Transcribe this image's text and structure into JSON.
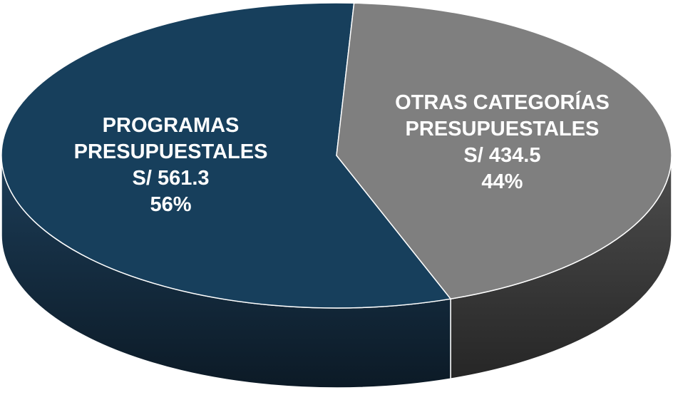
{
  "chart_data": {
    "type": "pie",
    "categories": [
      "PROGRAMAS PRESUPUESTALES",
      "OTRAS CATEGORÍAS PRESUPUESTALES"
    ],
    "values": [
      561.3,
      434.5
    ],
    "value_labels": [
      "S/ 561.3",
      "S/ 434.5"
    ],
    "percents": [
      56,
      44
    ],
    "percent_labels": [
      "56%",
      "44%"
    ],
    "colors": [
      "#173f5c",
      "#7f7f7f"
    ],
    "side_colors": [
      [
        "#1c3d58",
        "#0c1a26"
      ],
      [
        "#4e4e4e",
        "#262626"
      ]
    ]
  }
}
